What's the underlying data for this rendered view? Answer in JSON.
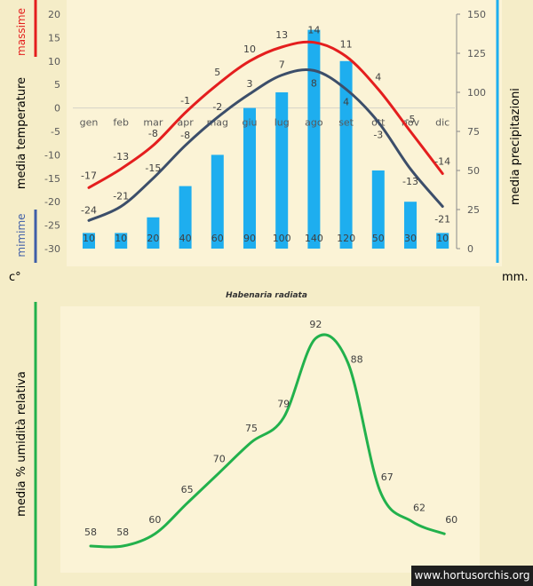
{
  "chart_data": [
    {
      "type": "bar+line",
      "categories": [
        "gen",
        "feb",
        "mar",
        "apr",
        "mag",
        "giu",
        "lug",
        "ago",
        "set",
        "ott",
        "nov",
        "dic"
      ],
      "series": [
        {
          "name": "massime",
          "kind": "line",
          "axis": "left",
          "color": "#e41e1e",
          "values": [
            -17,
            -13,
            -8,
            -1,
            5,
            10,
            13,
            14,
            11,
            4,
            -5,
            -14
          ]
        },
        {
          "name": "mimime",
          "kind": "line",
          "axis": "left",
          "color": "#3c4e6a",
          "values": [
            -24,
            -21,
            -15,
            -8,
            -2,
            3,
            7,
            8,
            4,
            -3,
            -13,
            -21
          ]
        },
        {
          "name": "",
          "kind": "bar",
          "axis": "right",
          "color": "#1eaeef",
          "values": [
            10,
            10,
            20,
            40,
            60,
            90,
            100,
            140,
            120,
            50,
            30,
            10
          ]
        }
      ],
      "ylabel_left": "media  temperature",
      "ylabel_right": "media  precipitazioni",
      "unit_left": "c°",
      "unit_right": "mm.",
      "ylim_left": [
        -30,
        20
      ],
      "ylim_right": [
        0,
        150
      ],
      "yticks_left": [
        20,
        15,
        10,
        5,
        0,
        -5,
        -10,
        -15,
        -20,
        -25,
        -30
      ],
      "yticks_right": [
        150,
        125,
        100,
        75,
        50,
        25,
        0
      ]
    },
    {
      "type": "line",
      "title": "Habenaria radiata",
      "ylabel": "media %  umidità relativa",
      "series": [
        {
          "name": "",
          "color": "#22b14c",
          "values": [
            58,
            58,
            60,
            65,
            70,
            75,
            79,
            92,
            88,
            67,
            62,
            60
          ]
        }
      ]
    }
  ],
  "watermark": "www.hortusorchis.org"
}
